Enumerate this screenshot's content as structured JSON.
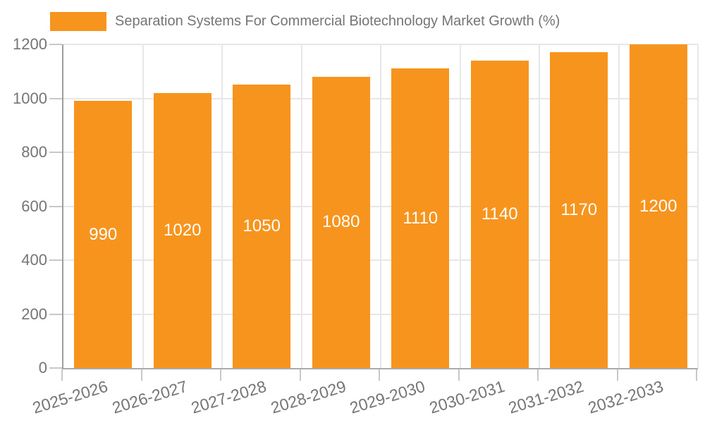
{
  "chart_data": {
    "type": "bar",
    "title": "Separation Systems For Commercial Biotechnology Market Growth (%)",
    "series_name": "Separation Systems For Commercial Biotechnology Market Growth (%)",
    "categories": [
      "2025-2026",
      "2026-2027",
      "2027-2028",
      "2028-2029",
      "2029-2030",
      "2030-2031",
      "2031-2032",
      "2032-2033"
    ],
    "values": [
      990,
      1020,
      1050,
      1080,
      1110,
      1140,
      1170,
      1200
    ],
    "value_labels": [
      "990",
      "1020",
      "1050",
      "1080",
      "1110",
      "1140",
      "1170",
      "1200"
    ],
    "xlabel": "",
    "ylabel": "",
    "ylim": [
      0,
      1200
    ],
    "yticks": [
      0,
      200,
      400,
      600,
      800,
      1000,
      1200
    ],
    "grid": true,
    "legend_position": "top",
    "colors": {
      "bar": "#F7941E",
      "value_label_text": "#FFFFFF",
      "axis_text": "#757575",
      "axis_line": "#9E9E9E",
      "grid_line": "#E7E7E7",
      "tick_line": "#C8C8C8",
      "background": "#FFFFFF"
    }
  }
}
